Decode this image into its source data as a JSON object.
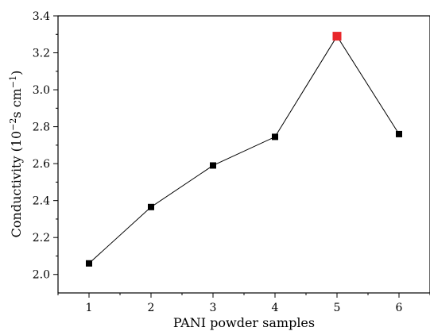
{
  "chart_data": {
    "type": "line",
    "xlabel": "PANI powder samples",
    "ylabel": "Conductivity (10",
    "ylabel_exp1": "−2",
    "ylabel_mid": "s cm",
    "ylabel_exp2": "−1",
    "ylabel_end": ")",
    "x": [
      1,
      2,
      3,
      4,
      5,
      6
    ],
    "y": [
      2.06,
      2.365,
      2.59,
      2.745,
      3.29,
      2.76
    ],
    "xlim": [
      0.5,
      6.5
    ],
    "ylim": [
      1.9,
      3.4
    ],
    "xticks": [
      "1",
      "2",
      "3",
      "4",
      "5",
      "6"
    ],
    "yticks": [
      "2.0",
      "2.2",
      "2.4",
      "2.6",
      "2.8",
      "3.0",
      "3.2",
      "3.4"
    ],
    "grid": false,
    "marker": "square",
    "highlight_index": 4,
    "colors": {
      "marker": "#000000",
      "highlight": "#e8262a",
      "line": "#000000"
    }
  }
}
